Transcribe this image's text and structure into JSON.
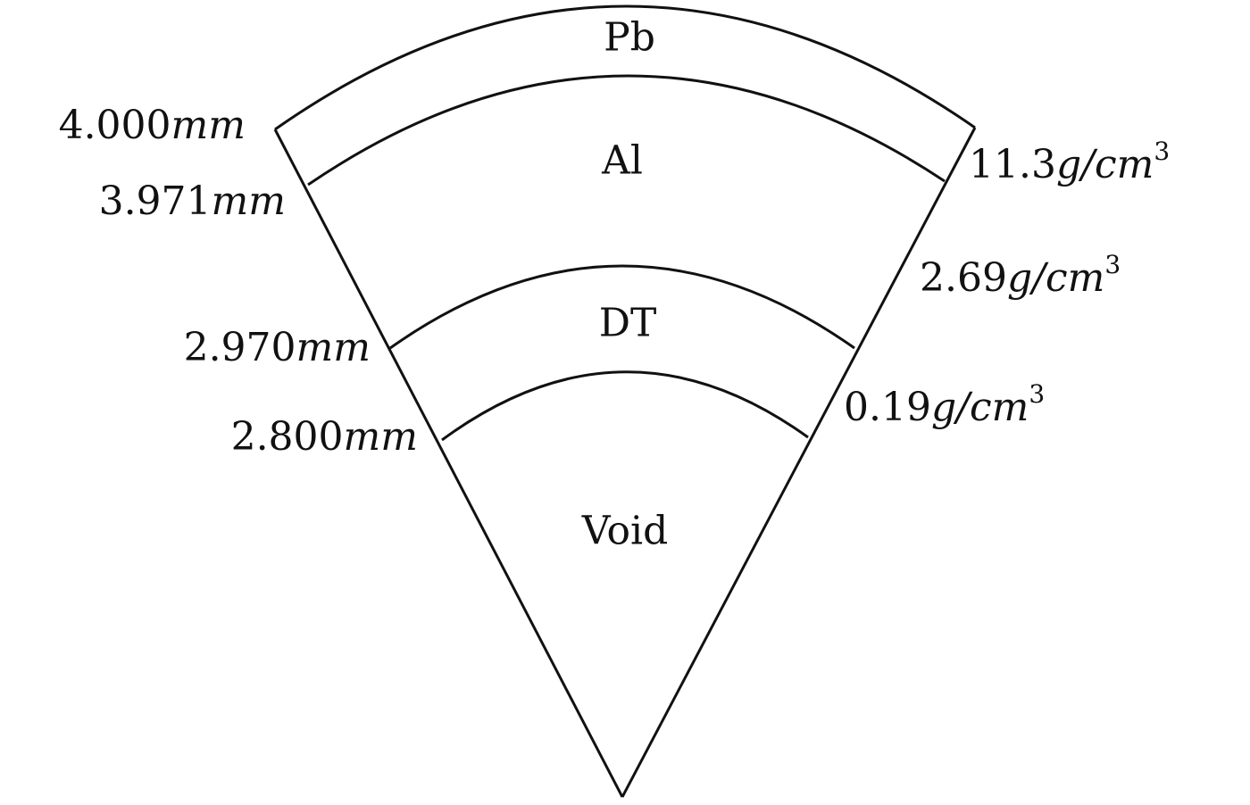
{
  "layers": [
    {
      "label": "Pb"
    },
    {
      "label": "Al"
    },
    {
      "label": "DT"
    },
    {
      "label": "Void"
    }
  ],
  "radii": [
    {
      "value": "4.000",
      "unit": "mm"
    },
    {
      "value": "3.971",
      "unit": "mm"
    },
    {
      "value": "2.970",
      "unit": "mm"
    },
    {
      "value": "2.800",
      "unit": "mm"
    }
  ],
  "densities": [
    {
      "value": "11.3",
      "unit": "g/cm",
      "exponent": "3"
    },
    {
      "value": "2.69",
      "unit": "g/cm",
      "exponent": "3"
    },
    {
      "value": "0.19",
      "unit": "g/cm",
      "exponent": "3"
    }
  ]
}
